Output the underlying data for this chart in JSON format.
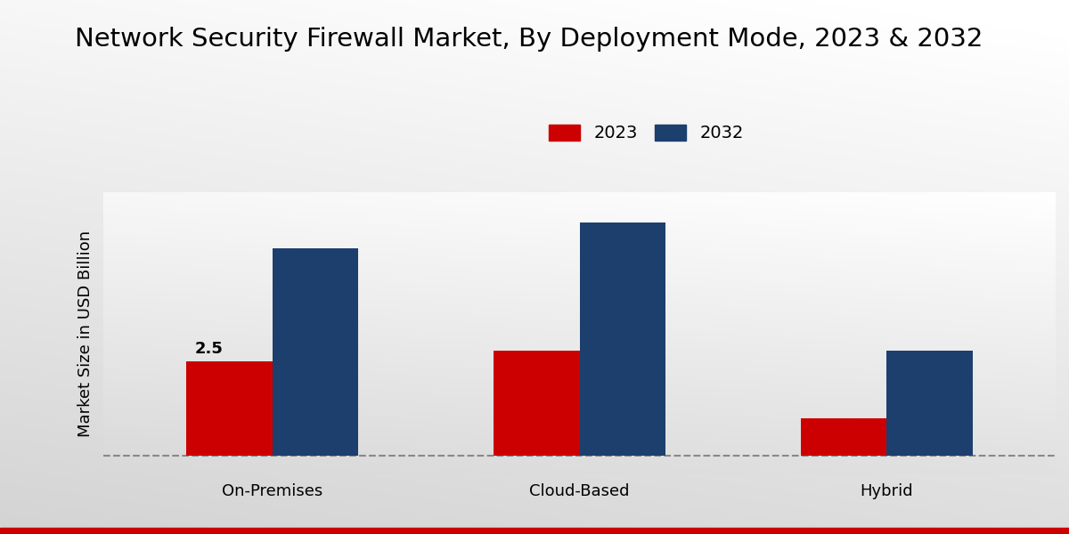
{
  "title": "Network Security Firewall Market, By Deployment Mode, 2023 & 2032",
  "ylabel": "Market Size in USD Billion",
  "categories": [
    "On-Premises",
    "Cloud-Based",
    "Hybrid"
  ],
  "values_2023": [
    2.5,
    2.8,
    1.0
  ],
  "values_2032": [
    5.5,
    6.2,
    2.8
  ],
  "annotation_value": "2.5",
  "color_2023": "#cc0000",
  "color_2032": "#1c3f6e",
  "legend_labels": [
    "2023",
    "2032"
  ],
  "bg_light": "#f5f5f5",
  "bg_dark": "#c8c8c8",
  "title_fontsize": 21,
  "label_fontsize": 13,
  "tick_fontsize": 13,
  "annotation_fontsize": 13,
  "bar_width": 0.28,
  "ylim_bottom": -0.5,
  "ylim_top": 7.0,
  "xlim_left": -0.55,
  "xlim_right": 2.55,
  "bottom_bar_color": "#cc0000",
  "bottom_bar_height": 0.012
}
